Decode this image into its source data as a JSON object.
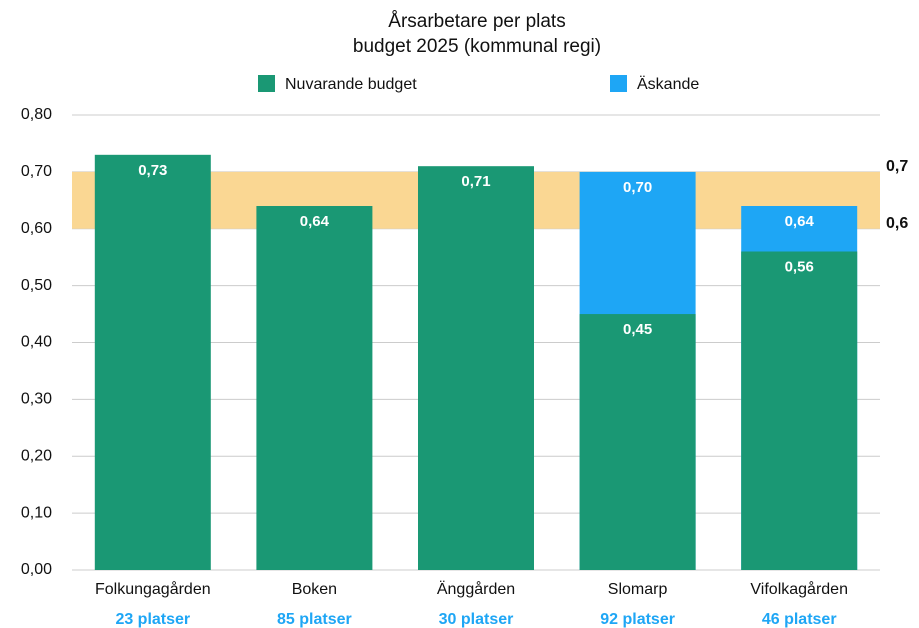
{
  "chart_data": {
    "type": "bar",
    "title": "Årsarbetare per plats",
    "subtitle": "budget 2025 (kommunal regi)",
    "categories": [
      "Folkungagården",
      "Boken",
      "Änggården",
      "Slomarp",
      "Vifolkagården"
    ],
    "category_notes": [
      "23 platser",
      "85 platser",
      "30 platser",
      "92 platser",
      "46 platser"
    ],
    "series": [
      {
        "name": "Äskande",
        "color": "#1ea6f5",
        "values": [
          null,
          null,
          null,
          0.7,
          0.64
        ],
        "value_labels": [
          null,
          null,
          null,
          "0,70",
          "0,64"
        ]
      },
      {
        "name": "Nuvarande budget",
        "color": "#1a9874",
        "values": [
          0.73,
          0.64,
          0.71,
          0.45,
          0.56
        ],
        "value_labels": [
          "0,73",
          "0,64",
          "0,71",
          "0,45",
          "0,56"
        ]
      }
    ],
    "legend_order": [
      1,
      0
    ],
    "ylim": [
      0,
      0.8
    ],
    "yticks": [
      {
        "value": 0,
        "label": "0,00"
      },
      {
        "value": 0.1,
        "label": "0,10"
      },
      {
        "value": 0.2,
        "label": "0,20"
      },
      {
        "value": 0.3,
        "label": "0,30"
      },
      {
        "value": 0.4,
        "label": "0,40"
      },
      {
        "value": 0.5,
        "label": "0,50"
      },
      {
        "value": 0.6,
        "label": "0,60"
      },
      {
        "value": 0.7,
        "label": "0,70"
      },
      {
        "value": 0.8,
        "label": "0,80"
      }
    ],
    "grid": true,
    "reference_band": {
      "range": [
        0.6,
        0.7
      ],
      "labels": [
        "0,6",
        "0,7"
      ],
      "color": "#fad793"
    }
  }
}
